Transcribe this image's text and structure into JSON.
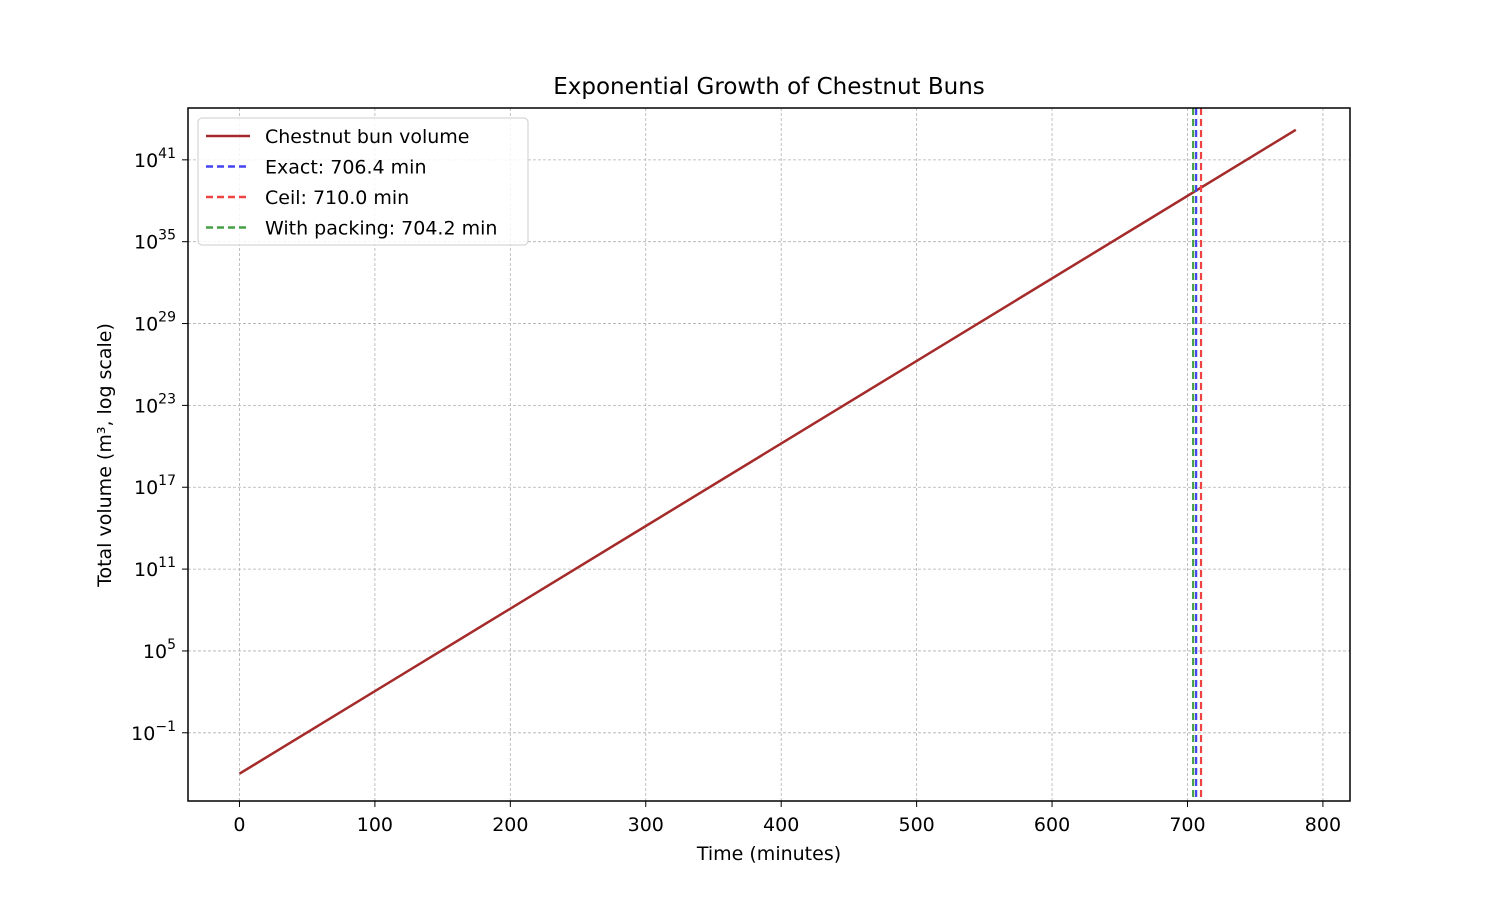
{
  "chart_data": {
    "type": "line",
    "title": "Exponential Growth of Chestnut Buns",
    "xlabel": "Time (minutes)",
    "ylabel": "Total volume (m³, log scale)",
    "yscale": "log",
    "xlim": [
      -38,
      820
    ],
    "ylim_log10": [
      -6,
      44.8
    ],
    "xticks": [
      0,
      100,
      200,
      300,
      400,
      500,
      600,
      700,
      800
    ],
    "yticks": [
      {
        "base": "10",
        "exp": "−1",
        "log10": -1
      },
      {
        "base": "10",
        "exp": "5",
        "log10": 5
      },
      {
        "base": "10",
        "exp": "11",
        "log10": 11
      },
      {
        "base": "10",
        "exp": "17",
        "log10": 17
      },
      {
        "base": "10",
        "exp": "23",
        "log10": 23
      },
      {
        "base": "10",
        "exp": "29",
        "log10": 29
      },
      {
        "base": "10",
        "exp": "35",
        "log10": 35
      },
      {
        "base": "10",
        "exp": "41",
        "log10": 41
      }
    ],
    "grid": true,
    "legend_position": "top-left",
    "series": [
      {
        "name": "Chestnut bun volume",
        "style": "solid",
        "color": "#a52a2a",
        "x": [
          0,
          780
        ],
        "log10_y": [
          -4,
          43.2
        ]
      }
    ],
    "vlines": [
      {
        "name": "Exact: 706.4 min",
        "x": 706.4,
        "color": "#4444ee",
        "style": "dashed"
      },
      {
        "name": "Ceil: 710.0 min",
        "x": 710.0,
        "color": "#ee4444",
        "style": "dashed"
      },
      {
        "name": "With packing: 704.2 min",
        "x": 704.2,
        "color": "#44a044",
        "style": "dashed"
      }
    ]
  }
}
